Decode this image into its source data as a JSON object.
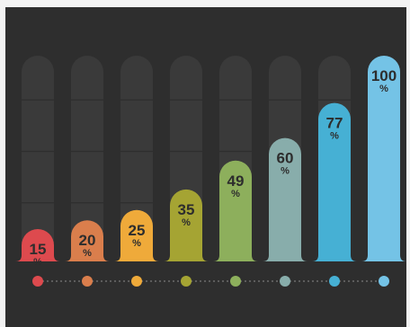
{
  "chart_data": {
    "type": "bar",
    "categories": [
      "",
      "",
      "",
      "",
      "",
      "",
      "",
      ""
    ],
    "values": [
      15,
      20,
      25,
      35,
      49,
      60,
      77,
      100
    ],
    "value_labels": [
      "15",
      "20",
      "25",
      "35",
      "49",
      "60",
      "77",
      "100"
    ],
    "unit_label": "%",
    "ylim": [
      0,
      100
    ],
    "colors": [
      "#dd4a4e",
      "#da7e4c",
      "#efaa3a",
      "#a5a433",
      "#8daf5c",
      "#88adab",
      "#46b0d4",
      "#74c3e6"
    ],
    "track_color": "#3a3a3a",
    "label_color": "#2d2d2d",
    "grid": true,
    "legend": "none"
  }
}
